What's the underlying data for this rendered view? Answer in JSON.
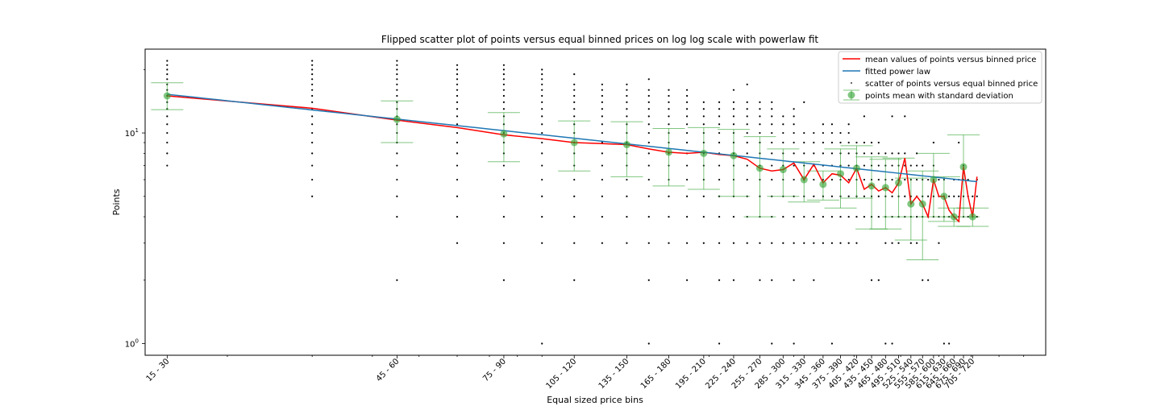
{
  "chart_data": {
    "type": "scatter",
    "title": "Flipped scatter plot of points versus equal binned prices on log log scale with powerlaw fit",
    "xlabel": "Equal sized price bins",
    "ylabel": "Points",
    "x_scale": "log",
    "y_scale": "log",
    "xlim": [
      13.5,
      1000
    ],
    "ylim": [
      0.88,
      25
    ],
    "x_tick_labels": [
      "15 - 30",
      "45 - 60",
      "75 - 90",
      "105 - 120",
      "135 - 150",
      "165 - 180",
      "195 - 210",
      "225 - 240",
      "255 - 270",
      "285 - 300",
      "315 - 330",
      "345 - 360",
      "375 - 390",
      "405 - 420",
      "435 - 450",
      "465 - 480",
      "495 - 510",
      "525 - 540",
      "555 - 570",
      "585 - 600",
      "615 - 630",
      "645 - 660",
      "675 - 690",
      "705 - 720"
    ],
    "x_tick_positions": [
      15,
      45,
      75,
      105,
      135,
      165,
      195,
      225,
      255,
      285,
      315,
      345,
      375,
      405,
      435,
      465,
      495,
      525,
      555,
      585,
      615,
      645,
      675,
      705
    ],
    "y_major_ticks": [
      1,
      10
    ],
    "y_major_labels": [
      "10^0",
      "10^1"
    ],
    "y_minor_ticks": [
      2,
      3,
      4,
      5,
      6,
      7,
      8,
      9,
      20
    ],
    "grid": false,
    "legend_position": "top-right",
    "legend": [
      "mean values of points versus binned price",
      "fitted power law",
      "scatter of points versus equal binned price",
      "points mean with standard deviation"
    ],
    "colors": {
      "mean_line": "#ff0000",
      "fit_line": "#1f77b4",
      "scatter": "#000000",
      "errorbar": "#2ca02c"
    },
    "mean_with_std": [
      {
        "x": 15,
        "y": 15.0,
        "low": 12.9,
        "high": 17.3
      },
      {
        "x": 45,
        "y": 11.6,
        "low": 9.0,
        "high": 14.2
      },
      {
        "x": 75,
        "y": 9.9,
        "low": 7.3,
        "high": 12.5
      },
      {
        "x": 105,
        "y": 9.0,
        "low": 6.6,
        "high": 11.4
      },
      {
        "x": 135,
        "y": 8.8,
        "low": 6.2,
        "high": 11.3
      },
      {
        "x": 165,
        "y": 8.1,
        "low": 5.6,
        "high": 10.5
      },
      {
        "x": 195,
        "y": 8.0,
        "low": 5.4,
        "high": 10.6
      },
      {
        "x": 225,
        "y": 7.8,
        "low": 5.0,
        "high": 10.4
      },
      {
        "x": 255,
        "y": 6.8,
        "low": 4.0,
        "high": 9.6
      },
      {
        "x": 285,
        "y": 6.7,
        "low": 5.0,
        "high": 8.4
      },
      {
        "x": 315,
        "y": 6.0,
        "low": 4.7,
        "high": 7.3
      },
      {
        "x": 345,
        "y": 5.7,
        "low": 4.8,
        "high": 6.6
      },
      {
        "x": 375,
        "y": 6.4,
        "low": 4.4,
        "high": 8.4
      },
      {
        "x": 405,
        "y": 6.8,
        "low": 4.9,
        "high": 8.7
      },
      {
        "x": 435,
        "y": 5.6,
        "low": 3.5,
        "high": 7.7
      },
      {
        "x": 465,
        "y": 5.5,
        "low": 3.5,
        "high": 7.5
      },
      {
        "x": 495,
        "y": 5.8,
        "low": 4.0,
        "high": 7.6
      },
      {
        "x": 525,
        "y": 4.6,
        "low": 3.1,
        "high": 6.1
      },
      {
        "x": 555,
        "y": 4.6,
        "low": 2.5,
        "high": 6.6
      },
      {
        "x": 585,
        "y": 6.0,
        "low": 4.0,
        "high": 8.0
      },
      {
        "x": 615,
        "y": 5.0,
        "low": 3.8,
        "high": 6.2
      },
      {
        "x": 645,
        "y": 4.0,
        "low": 3.6,
        "high": 4.4
      },
      {
        "x": 675,
        "y": 6.9,
        "low": 4.0,
        "high": 9.8
      },
      {
        "x": 705,
        "y": 4.0,
        "low": 3.6,
        "high": 4.4
      }
    ],
    "mean_line": [
      [
        15,
        15.0
      ],
      [
        30,
        13.1
      ],
      [
        45,
        11.5
      ],
      [
        60,
        10.6
      ],
      [
        75,
        9.8
      ],
      [
        90,
        9.4
      ],
      [
        105,
        9.0
      ],
      [
        120,
        8.9
      ],
      [
        135,
        8.8
      ],
      [
        150,
        8.4
      ],
      [
        165,
        8.1
      ],
      [
        180,
        8.0
      ],
      [
        195,
        8.1
      ],
      [
        210,
        7.9
      ],
      [
        225,
        7.8
      ],
      [
        240,
        7.5
      ],
      [
        255,
        6.8
      ],
      [
        270,
        6.6
      ],
      [
        285,
        6.7
      ],
      [
        300,
        7.2
      ],
      [
        315,
        6.0
      ],
      [
        330,
        7.1
      ],
      [
        345,
        5.8
      ],
      [
        360,
        6.4
      ],
      [
        375,
        6.3
      ],
      [
        390,
        5.8
      ],
      [
        405,
        6.8
      ],
      [
        420,
        5.4
      ],
      [
        435,
        5.7
      ],
      [
        450,
        5.3
      ],
      [
        465,
        5.5
      ],
      [
        480,
        5.2
      ],
      [
        495,
        5.8
      ],
      [
        510,
        7.6
      ],
      [
        525,
        4.6
      ],
      [
        540,
        5.0
      ],
      [
        555,
        4.6
      ],
      [
        570,
        4.0
      ],
      [
        585,
        6.0
      ],
      [
        600,
        5.0
      ],
      [
        615,
        5.0
      ],
      [
        630,
        4.3
      ],
      [
        645,
        4.0
      ],
      [
        660,
        3.8
      ],
      [
        675,
        6.9
      ],
      [
        690,
        5.0
      ],
      [
        705,
        4.0
      ],
      [
        720,
        6.2
      ]
    ],
    "power_law_fit": {
      "a": 29.77,
      "b": -0.2468,
      "x_start": 15,
      "x_end": 720
    },
    "scatter_columns": [
      {
        "x": 15,
        "y": [
          7,
          8,
          9,
          10,
          11,
          12,
          13,
          14,
          15,
          16,
          17,
          18,
          19,
          20,
          21,
          22
        ]
      },
      {
        "x": 30,
        "y": [
          5,
          6,
          7,
          8,
          9,
          10,
          11,
          12,
          13,
          14,
          15,
          16,
          17,
          18,
          19,
          20,
          21,
          22
        ]
      },
      {
        "x": 45,
        "y": [
          2,
          4,
          5,
          6,
          7,
          8,
          9,
          10,
          11,
          12,
          13,
          14,
          15,
          16,
          17,
          18,
          19,
          20,
          21,
          22
        ]
      },
      {
        "x": 60,
        "y": [
          3,
          4,
          5,
          6,
          7,
          8,
          9,
          10,
          11,
          12,
          13,
          14,
          15,
          16,
          17,
          18,
          19,
          20,
          21
        ]
      },
      {
        "x": 75,
        "y": [
          2,
          3,
          4,
          5,
          6,
          7,
          8,
          9,
          10,
          11,
          12,
          13,
          14,
          15,
          16,
          17,
          18,
          19,
          20,
          21
        ]
      },
      {
        "x": 90,
        "y": [
          1,
          3,
          4,
          5,
          6,
          7,
          8,
          9,
          10,
          11,
          12,
          13,
          14,
          15,
          16,
          17,
          18,
          19,
          20
        ]
      },
      {
        "x": 105,
        "y": [
          2,
          3,
          4,
          5,
          6,
          7,
          8,
          9,
          10,
          11,
          12,
          13,
          14,
          15,
          16,
          17,
          19
        ]
      },
      {
        "x": 120,
        "y": [
          3,
          4,
          5,
          6,
          7,
          8,
          9,
          10,
          11,
          12,
          13,
          14,
          15,
          16,
          17
        ]
      },
      {
        "x": 135,
        "y": [
          3,
          4,
          5,
          6,
          7,
          8,
          9,
          10,
          11,
          12,
          13,
          14,
          15,
          16,
          17
        ]
      },
      {
        "x": 150,
        "y": [
          1,
          2,
          3,
          4,
          5,
          6,
          7,
          8,
          9,
          10,
          11,
          12,
          13,
          14,
          15,
          16,
          18
        ]
      },
      {
        "x": 165,
        "y": [
          3,
          4,
          5,
          6,
          7,
          8,
          9,
          10,
          11,
          12,
          13,
          14,
          15,
          16
        ]
      },
      {
        "x": 180,
        "y": [
          2,
          3,
          4,
          5,
          6,
          7,
          8,
          9,
          10,
          11,
          12,
          13,
          14,
          15,
          16
        ]
      },
      {
        "x": 195,
        "y": [
          3,
          4,
          5,
          6,
          7,
          8,
          9,
          10,
          11,
          12,
          13,
          14
        ]
      },
      {
        "x": 210,
        "y": [
          1,
          2,
          3,
          4,
          5,
          6,
          7,
          8,
          9,
          10,
          11,
          12,
          13,
          14
        ]
      },
      {
        "x": 225,
        "y": [
          2,
          3,
          4,
          5,
          6,
          7,
          8,
          9,
          10,
          11,
          12,
          13,
          14,
          16
        ]
      },
      {
        "x": 240,
        "y": [
          3,
          4,
          5,
          6,
          7,
          8,
          9,
          10,
          11,
          12,
          13,
          14,
          17
        ]
      },
      {
        "x": 255,
        "y": [
          2,
          3,
          4,
          5,
          6,
          7,
          8,
          9,
          10,
          11,
          12,
          13,
          14
        ]
      },
      {
        "x": 270,
        "y": [
          1,
          2,
          3,
          4,
          5,
          6,
          7,
          8,
          9,
          10,
          11,
          12,
          13,
          14
        ]
      },
      {
        "x": 285,
        "y": [
          3,
          4,
          5,
          6,
          7,
          8,
          9,
          10,
          11,
          12
        ]
      },
      {
        "x": 300,
        "y": [
          1,
          2,
          3,
          4,
          5,
          6,
          7,
          8,
          9,
          10,
          11,
          12,
          13
        ]
      },
      {
        "x": 315,
        "y": [
          3,
          4,
          5,
          6,
          7,
          8,
          9,
          10,
          14
        ]
      },
      {
        "x": 330,
        "y": [
          2,
          3,
          4,
          5,
          6,
          7,
          8,
          9,
          10
        ]
      },
      {
        "x": 345,
        "y": [
          3,
          4,
          5,
          6,
          7,
          8,
          9,
          10,
          11
        ]
      },
      {
        "x": 360,
        "y": [
          1,
          3,
          4,
          5,
          6,
          7,
          8,
          9,
          10,
          11
        ]
      },
      {
        "x": 375,
        "y": [
          3,
          4,
          5,
          6,
          7,
          8,
          9,
          10
        ]
      },
      {
        "x": 390,
        "y": [
          3,
          4,
          5,
          6,
          7,
          8,
          9,
          10,
          11
        ]
      },
      {
        "x": 405,
        "y": [
          3,
          4,
          5,
          6,
          7,
          8,
          9
        ]
      },
      {
        "x": 420,
        "y": [
          4,
          5,
          6,
          7,
          8,
          9,
          12
        ]
      },
      {
        "x": 435,
        "y": [
          2,
          4,
          5,
          6,
          7,
          8,
          9
        ]
      },
      {
        "x": 450,
        "y": [
          2,
          4,
          5,
          6,
          7,
          8,
          9
        ]
      },
      {
        "x": 465,
        "y": [
          1,
          3,
          4,
          5,
          6,
          7,
          8
        ]
      },
      {
        "x": 480,
        "y": [
          1,
          3,
          4,
          5,
          6,
          7,
          8,
          12
        ]
      },
      {
        "x": 495,
        "y": [
          3,
          4,
          5,
          6,
          7,
          8
        ]
      },
      {
        "x": 510,
        "y": [
          4,
          5,
          6,
          7,
          8,
          12
        ]
      },
      {
        "x": 525,
        "y": [
          3,
          4,
          5,
          6,
          7
        ]
      },
      {
        "x": 540,
        "y": [
          3,
          4,
          5,
          6,
          7,
          8
        ]
      },
      {
        "x": 555,
        "y": [
          2,
          4,
          5,
          6,
          7
        ]
      },
      {
        "x": 570,
        "y": [
          2,
          4,
          5,
          6
        ]
      },
      {
        "x": 585,
        "y": [
          4,
          5,
          6,
          7,
          9
        ]
      },
      {
        "x": 600,
        "y": [
          3,
          4,
          5,
          6
        ]
      },
      {
        "x": 615,
        "y": [
          1,
          4,
          5,
          6
        ]
      },
      {
        "x": 630,
        "y": [
          1,
          4,
          5
        ]
      },
      {
        "x": 645,
        "y": [
          4,
          5,
          6
        ]
      },
      {
        "x": 660,
        "y": [
          4,
          5,
          6,
          9
        ]
      },
      {
        "x": 675,
        "y": [
          4,
          5,
          6,
          7
        ]
      },
      {
        "x": 690,
        "y": [
          4,
          5,
          6
        ]
      },
      {
        "x": 705,
        "y": [
          4,
          5
        ]
      },
      {
        "x": 720,
        "y": [
          4,
          5,
          6
        ]
      }
    ]
  }
}
